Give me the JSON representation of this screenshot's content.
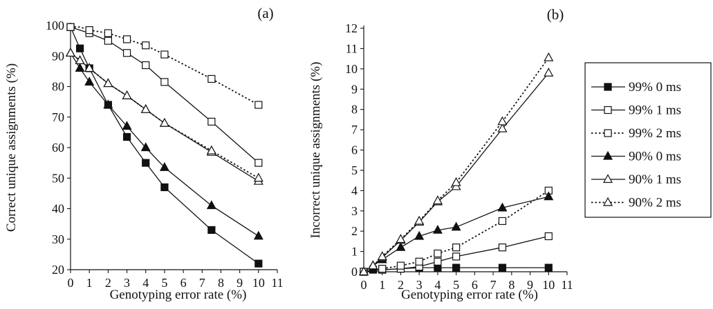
{
  "chart_data": [
    {
      "type": "line",
      "panel_label": "(a)",
      "xlabel": "Genotyping error rate (%)",
      "ylabel": "Correct unique assignments (%)",
      "xlim": [
        0,
        11
      ],
      "ylim": [
        20,
        100
      ],
      "x_ticks": [
        "0",
        "1",
        "2",
        "3",
        "4",
        "5",
        "6",
        "7",
        "8",
        "9",
        "10",
        "11"
      ],
      "y_ticks": [
        "20",
        "30",
        "40",
        "50",
        "60",
        "70",
        "80",
        "90",
        "100"
      ],
      "series": [
        {
          "key": "s99_0",
          "x": [
            0,
            0.5,
            1,
            2,
            3,
            4,
            5,
            7.5,
            10
          ],
          "values": [
            99.5,
            92.5,
            86,
            74,
            63.5,
            55,
            47,
            33,
            22
          ]
        },
        {
          "key": "s99_1",
          "x": [
            0,
            1,
            2,
            3,
            4,
            5,
            7.5,
            10
          ],
          "values": [
            99.5,
            97.5,
            95,
            91,
            87,
            81.5,
            68.5,
            55
          ]
        },
        {
          "key": "s99_2",
          "x": [
            0,
            0.5,
            1,
            2,
            3,
            4,
            5,
            7.5,
            10
          ],
          "values": [
            99.5,
            99.5,
            98.5,
            97.5,
            95.5,
            93.5,
            90.5,
            82.5,
            74
          ]
        },
        {
          "key": "s90_0",
          "x": [
            0,
            0.5,
            1,
            2,
            3,
            4,
            5,
            7.5,
            10
          ],
          "values": [
            91,
            86,
            81.5,
            74,
            67,
            60,
            53.5,
            41,
            31
          ]
        },
        {
          "key": "s90_1",
          "x": [
            0,
            0.5,
            1,
            2,
            3,
            4,
            5,
            7.5,
            10
          ],
          "values": [
            91,
            88.5,
            86,
            81,
            77,
            72.5,
            68,
            58.5,
            49
          ]
        },
        {
          "key": "s90_2",
          "x": [
            0,
            0.5,
            1,
            2,
            3,
            4,
            5,
            7.5,
            10
          ],
          "values": [
            91,
            88.5,
            86,
            81,
            77,
            72.5,
            68,
            59,
            50
          ]
        }
      ]
    },
    {
      "type": "line",
      "panel_label": "(b)",
      "xlabel": "Genotyping error rate (%)",
      "ylabel": "Incorrect unique assignments (%)",
      "xlim": [
        0,
        11
      ],
      "ylim": [
        0,
        12
      ],
      "x_ticks": [
        "0",
        "1",
        "2",
        "3",
        "4",
        "5",
        "6",
        "7",
        "8",
        "9",
        "10",
        "11"
      ],
      "y_ticks": [
        "0",
        "1",
        "2",
        "3",
        "4",
        "5",
        "6",
        "7",
        "8",
        "9",
        "10",
        "11",
        "12"
      ],
      "series": [
        {
          "key": "s99_0",
          "x": [
            0,
            0.5,
            1,
            2,
            3,
            4,
            5,
            7.5,
            10
          ],
          "values": [
            0,
            0.1,
            0.1,
            0.15,
            0.2,
            0.2,
            0.2,
            0.2,
            0.2
          ]
        },
        {
          "key": "s99_1",
          "x": [
            0,
            0.5,
            1,
            2,
            3,
            4,
            5,
            7.5,
            10
          ],
          "values": [
            0,
            0.05,
            0.1,
            0.15,
            0.25,
            0.5,
            0.75,
            1.2,
            1.75
          ]
        },
        {
          "key": "s99_2",
          "x": [
            0,
            0.5,
            1,
            2,
            3,
            4,
            5,
            7.5,
            10
          ],
          "values": [
            0,
            0.05,
            0.15,
            0.3,
            0.5,
            0.9,
            1.2,
            2.5,
            4
          ]
        },
        {
          "key": "s90_0",
          "x": [
            0,
            0.5,
            1,
            2,
            3,
            4,
            5,
            7.5,
            10
          ],
          "values": [
            0,
            0.3,
            0.6,
            1.2,
            1.75,
            2.05,
            2.2,
            3.15,
            3.7
          ]
        },
        {
          "key": "s90_1",
          "x": [
            0,
            0.5,
            1,
            2,
            3,
            4,
            5,
            7.5,
            10
          ],
          "values": [
            0,
            0.3,
            0.7,
            1.55,
            2.45,
            3.45,
            4.2,
            7.05,
            9.8
          ]
        },
        {
          "key": "s90_2",
          "x": [
            0,
            0.5,
            1,
            2,
            3,
            4,
            5,
            7.5,
            10
          ],
          "values": [
            0,
            0.3,
            0.75,
            1.6,
            2.5,
            3.5,
            4.4,
            7.4,
            10.55
          ]
        }
      ]
    }
  ],
  "legend": {
    "placement": "right",
    "entries": [
      {
        "key": "s99_0",
        "label": "99% 0 ms",
        "marker": "square",
        "filled": true,
        "dash": "solid"
      },
      {
        "key": "s99_1",
        "label": "99% 1 ms",
        "marker": "square",
        "filled": false,
        "dash": "solid"
      },
      {
        "key": "s99_2",
        "label": "99% 2 ms",
        "marker": "square",
        "filled": false,
        "dash": "dotted"
      },
      {
        "key": "s90_0",
        "label": "90% 0 ms",
        "marker": "triangle",
        "filled": true,
        "dash": "solid"
      },
      {
        "key": "s90_1",
        "label": "90% 1 ms",
        "marker": "triangle",
        "filled": false,
        "dash": "solid"
      },
      {
        "key": "s90_2",
        "label": "90% 2 ms",
        "marker": "triangle",
        "filled": false,
        "dash": "dotted"
      }
    ]
  },
  "colors": {
    "ink": "#111111",
    "background": "#ffffff"
  }
}
